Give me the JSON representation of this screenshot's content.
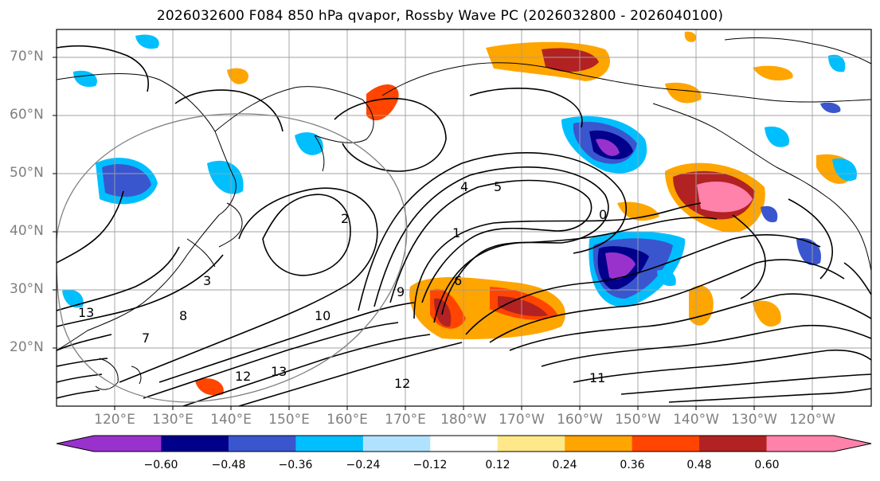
{
  "title": "2026032600 F084 850 hPa qvapor, Rossby Wave PC (2026032800 - 2026040100)",
  "map": {
    "lat_labels": [
      "70°N",
      "60°N",
      "50°N",
      "40°N",
      "30°N",
      "20°N"
    ],
    "lon_labels": [
      "120°E",
      "130°E",
      "140°E",
      "150°E",
      "160°E",
      "170°E",
      "180°W",
      "170°W",
      "160°W",
      "150°W",
      "140°W",
      "130°W",
      "120°W"
    ],
    "contour_labels": [
      "4",
      "5",
      "2",
      "3",
      "1",
      "0",
      "6",
      "8",
      "13",
      "12",
      "11",
      "7",
      "9",
      "10"
    ]
  },
  "colorbar": {
    "colors": [
      "#9932cc",
      "#00008b",
      "#3a56cf",
      "#00bfff",
      "#b0e2ff",
      "#ffffff",
      "#ffe88a",
      "#ffa500",
      "#ff4500",
      "#b22222",
      "#ff82ab"
    ],
    "under_color": "#9932cc",
    "over_color": "#ff82ab",
    "tick_labels": [
      "−0.60",
      "−0.48",
      "−0.36",
      "−0.24",
      "−0.12",
      "0.12",
      "0.24",
      "0.36",
      "0.48",
      "0.60"
    ]
  }
}
